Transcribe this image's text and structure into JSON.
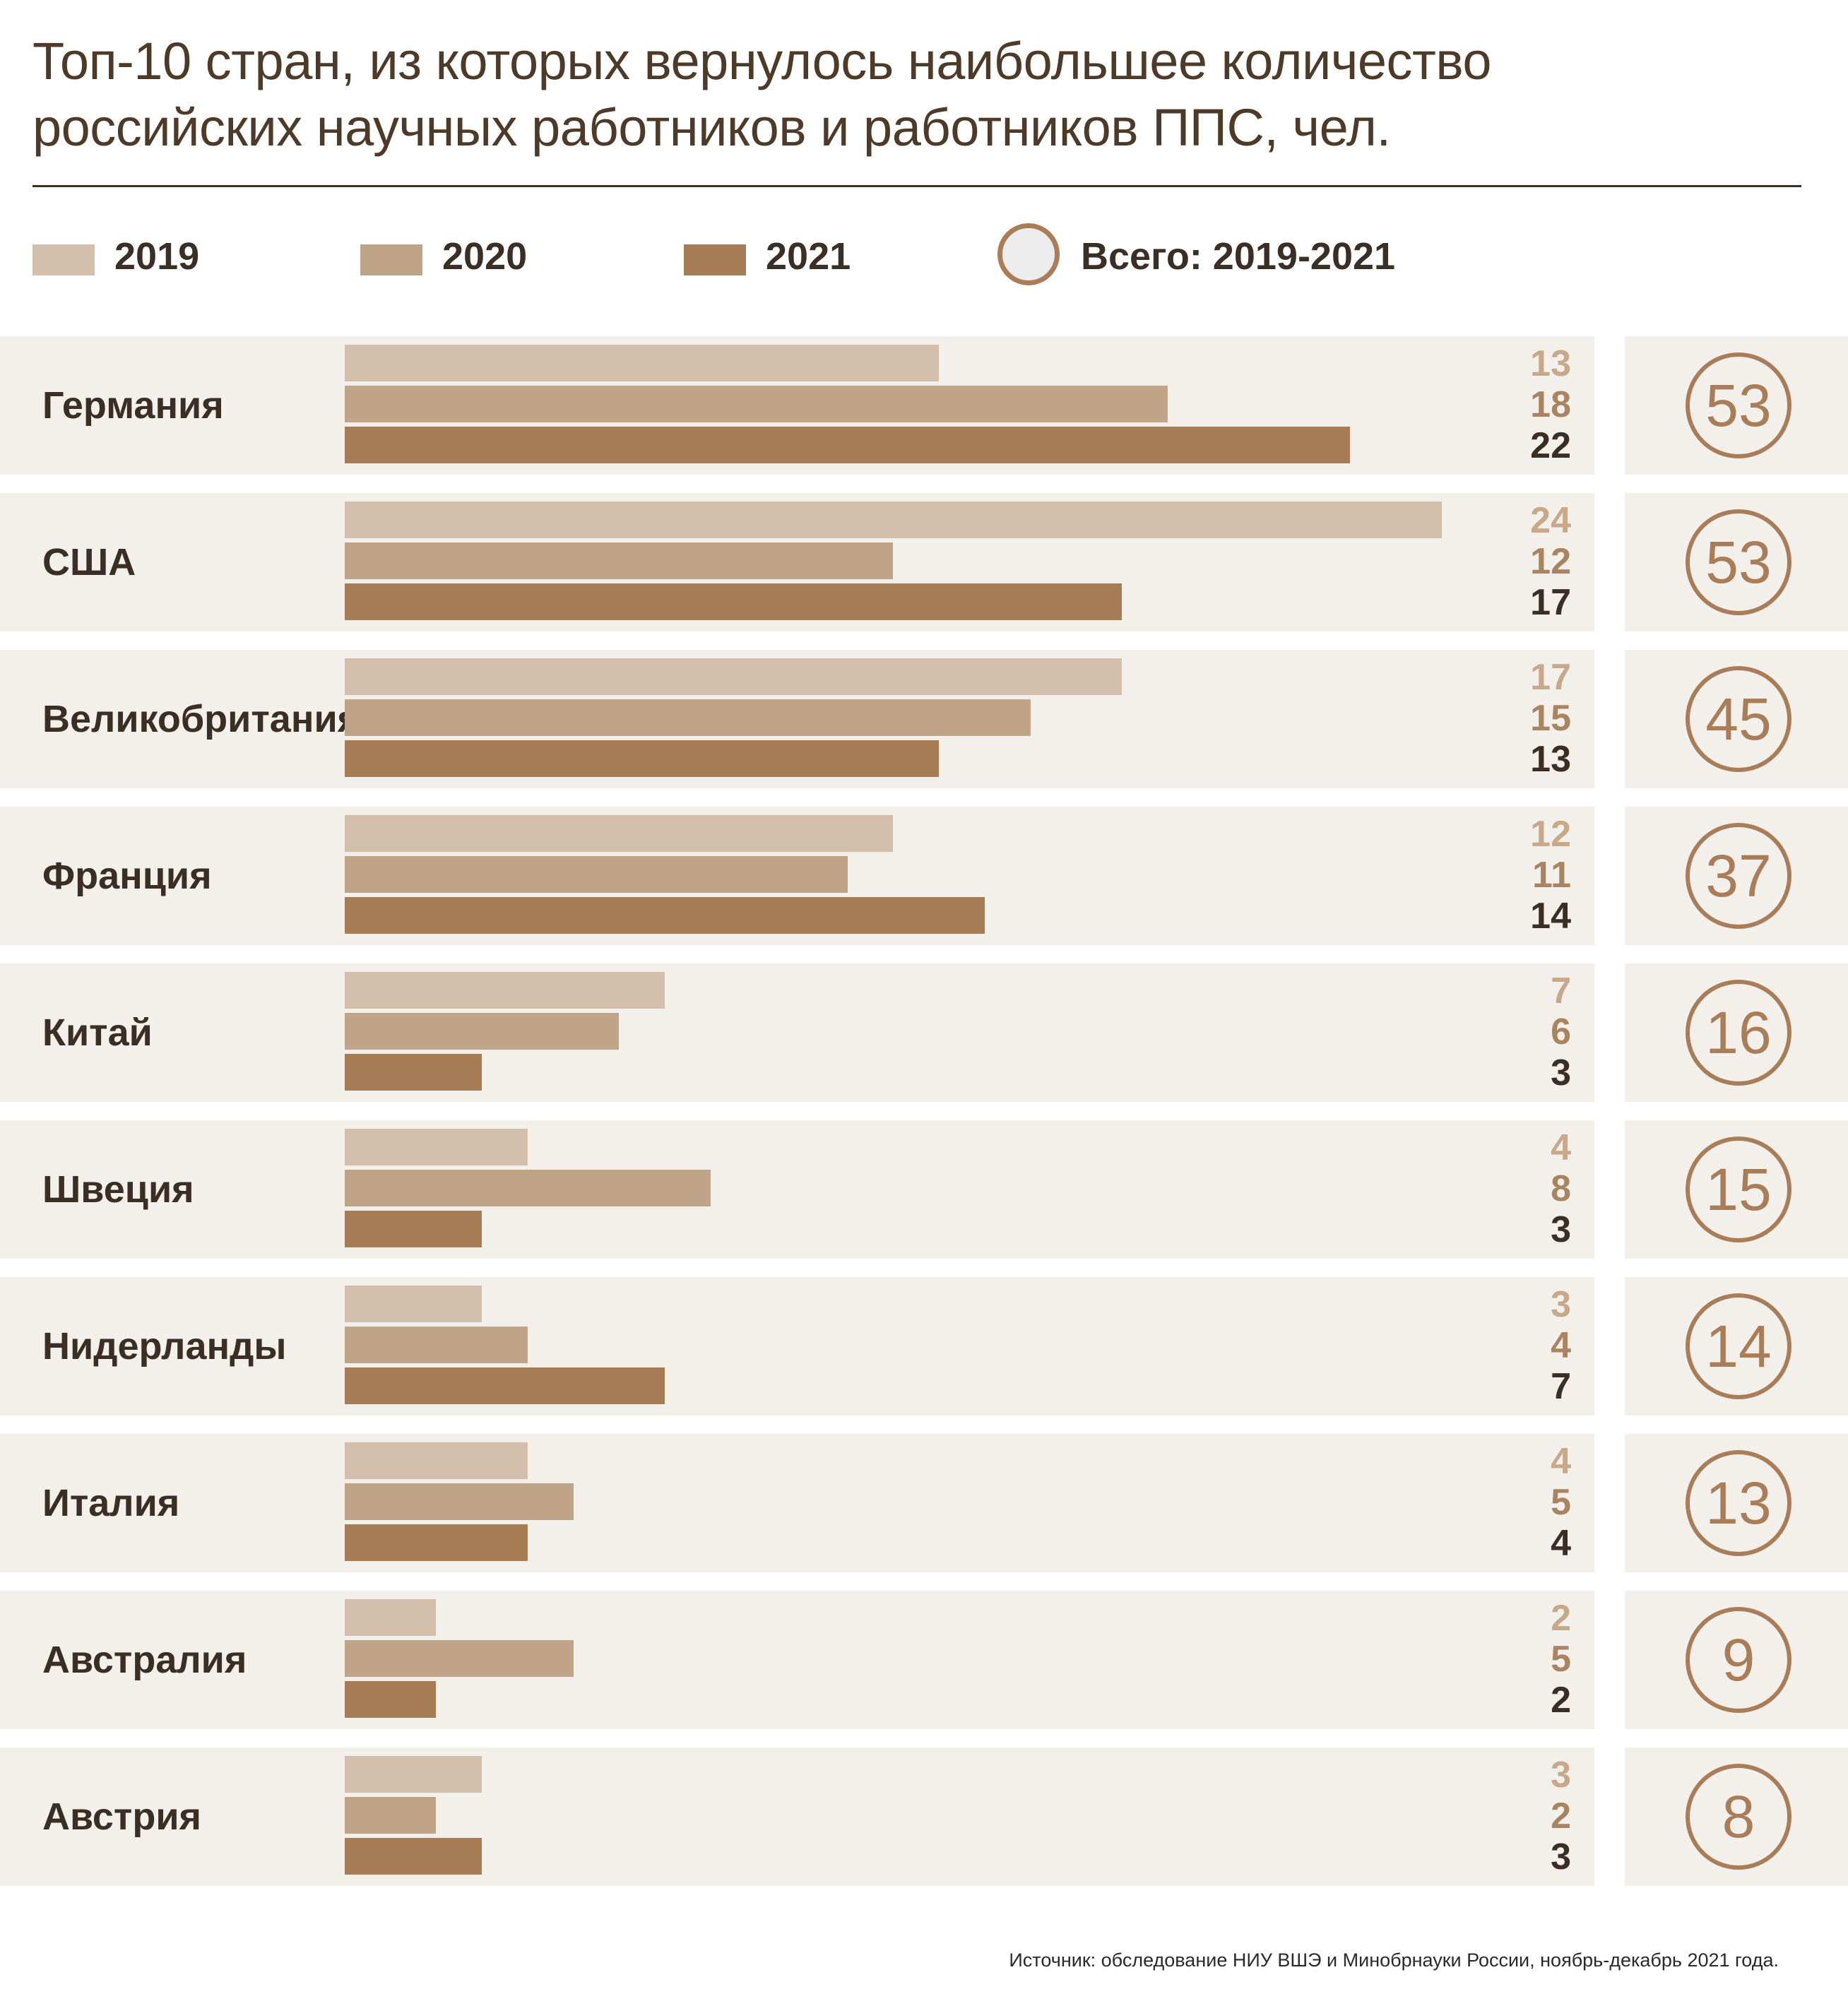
{
  "title": {
    "line1": "Топ-10 стран, из которых вернулось наибольшее количество",
    "line2": "российских научных работников и работников ППС, чел."
  },
  "legend": {
    "y2019": "2019",
    "y2020": "2020",
    "y2021": "2021",
    "total": "Всего: 2019-2021"
  },
  "colors": {
    "y2019": "#d4bfad",
    "y2020": "#c0a487",
    "y2021": "#a67c55",
    "row_bg": "#f3f0ec",
    "text_dark": "#3b2e24",
    "circle": "#a97d57"
  },
  "chart_data": {
    "type": "bar",
    "orientation": "horizontal",
    "title": "Топ-10 стран, из которых вернулось наибольшее количество российских научных работников и работников ППС, чел.",
    "categories": [
      "Германия",
      "США",
      "Великобритания",
      "Франция",
      "Китай",
      "Швеция",
      "Нидерланды",
      "Италия",
      "Австралия",
      "Австрия"
    ],
    "series": [
      {
        "name": "2019",
        "values": [
          13,
          24,
          17,
          12,
          7,
          4,
          3,
          4,
          2,
          3
        ]
      },
      {
        "name": "2020",
        "values": [
          18,
          12,
          15,
          11,
          6,
          8,
          4,
          5,
          5,
          2
        ]
      },
      {
        "name": "2021",
        "values": [
          22,
          17,
          13,
          14,
          3,
          3,
          7,
          4,
          2,
          3
        ]
      }
    ],
    "totals_label": "Всего: 2019-2021",
    "totals": [
      53,
      53,
      45,
      37,
      16,
      15,
      14,
      13,
      9,
      8
    ],
    "xlim": [
      0,
      24
    ],
    "grid": false,
    "legend": "top-left"
  },
  "source": "Источник: обследование НИУ ВШЭ и Минобрнауки России, ноябрь-декабрь 2021 года."
}
